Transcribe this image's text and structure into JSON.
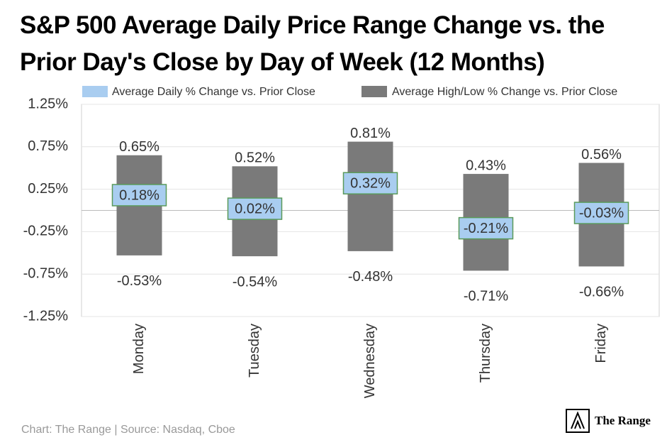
{
  "chart_data": {
    "type": "range_bar",
    "title": "S&P 500 Average Daily Price Range Change vs. the Prior Day's Close by Day of Week (12 Months)",
    "categories": [
      "Monday",
      "Tuesday",
      "Wednesday",
      "Thursday",
      "Friday"
    ],
    "series": [
      {
        "name": "Average Daily % Change vs. Prior Close",
        "color": "#a9cdf0",
        "border_color": "#5a9a5a",
        "values": [
          0.18,
          0.02,
          0.32,
          -0.21,
          -0.03
        ],
        "value_labels": [
          "0.18%",
          "0.02%",
          "0.32%",
          "-0.21%",
          "-0.03%"
        ]
      },
      {
        "name": "Average High/Low % Change vs. Prior Close",
        "color": "#7a7a7a",
        "high": [
          0.65,
          0.52,
          0.81,
          0.43,
          0.56
        ],
        "high_labels": [
          "0.65%",
          "0.52%",
          "0.81%",
          "0.43%",
          "0.56%"
        ],
        "low": [
          -0.53,
          -0.54,
          -0.48,
          -0.71,
          -0.66
        ],
        "low_labels": [
          "-0.53%",
          "-0.54%",
          "-0.48%",
          "-0.71%",
          "-0.66%"
        ]
      }
    ],
    "ylim": [
      -1.25,
      1.25
    ],
    "yticks": [
      {
        "value": 1.25,
        "label": "1.25%"
      },
      {
        "value": 0.75,
        "label": "0.75%"
      },
      {
        "value": 0.25,
        "label": "0.25%"
      },
      {
        "value": -0.25,
        "label": "-0.25%"
      },
      {
        "value": -0.75,
        "label": "-0.75%"
      },
      {
        "value": -1.25,
        "label": "-1.25%"
      }
    ],
    "grid": true,
    "source": "Chart: The Range | Source: Nasdaq, Cboe",
    "brand": "The Range"
  }
}
